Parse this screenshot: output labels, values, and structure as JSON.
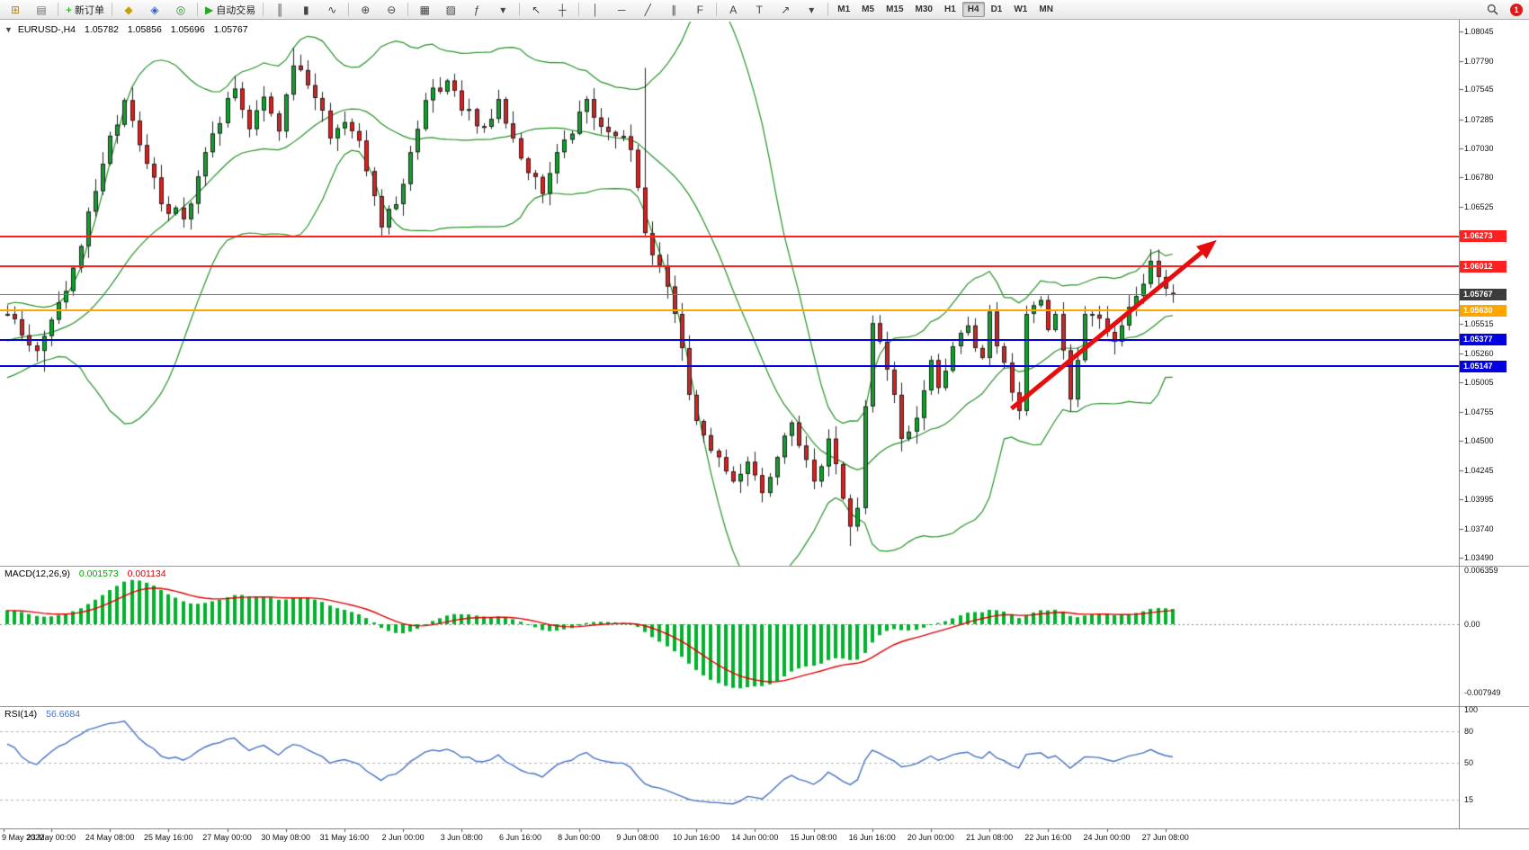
{
  "toolbar": {
    "notification_count": "1",
    "active_timeframe": "H4",
    "timeframes": [
      "M1",
      "M5",
      "M15",
      "M30",
      "H1",
      "H4",
      "D1",
      "W1",
      "MN"
    ],
    "items": [
      {
        "name": "new-chart-button",
        "glyph": "⊞",
        "color": "#b08820"
      },
      {
        "name": "profiles-button",
        "glyph": "▤",
        "color": "#707070"
      },
      {
        "type": "sep"
      },
      {
        "name": "new-order-button",
        "glyph": "+",
        "glyph_color": "#00A000",
        "label": "新订单"
      },
      {
        "type": "sep"
      },
      {
        "name": "market-watch-button",
        "glyph": "◆",
        "color": "#c8a000"
      },
      {
        "name": "navigator-button",
        "glyph": "◈",
        "color": "#3060c0"
      },
      {
        "name": "terminal-button",
        "glyph": "◎",
        "color": "#209020"
      },
      {
        "type": "sep"
      },
      {
        "name": "autotrading-button",
        "glyph": "▶",
        "glyph_color": "#22AA22",
        "label": "自动交易"
      },
      {
        "type": "sep"
      },
      {
        "name": "bar-chart-button",
        "glyph": "║"
      },
      {
        "name": "candlestick-chart-button",
        "glyph": "▮"
      },
      {
        "name": "line-chart-button",
        "glyph": "∿"
      },
      {
        "type": "sep"
      },
      {
        "name": "zoom-in-button",
        "glyph": "⊕"
      },
      {
        "name": "zoom-out-button",
        "glyph": "⊖"
      },
      {
        "type": "sep"
      },
      {
        "name": "tile-windows-button",
        "glyph": "▦"
      },
      {
        "name": "data-window-button",
        "glyph": "▨"
      },
      {
        "name": "indicators-button",
        "glyph": "ƒ"
      },
      {
        "name": "indicators-dropdown",
        "glyph": "▾"
      },
      {
        "type": "sep"
      },
      {
        "name": "cursor-button",
        "glyph": "↖"
      },
      {
        "name": "crosshair-button",
        "glyph": "┼"
      },
      {
        "type": "sep"
      },
      {
        "name": "vertical-line-button",
        "glyph": "│"
      },
      {
        "name": "horizontal-line-button",
        "glyph": "─"
      },
      {
        "name": "trendline-button",
        "glyph": "╱"
      },
      {
        "name": "equidistant-channel-button",
        "glyph": "∥"
      },
      {
        "name": "fibonacci-button",
        "glyph": "F"
      },
      {
        "type": "sep"
      },
      {
        "name": "text-button",
        "glyph": "A"
      },
      {
        "name": "text-label-button",
        "glyph": "T"
      },
      {
        "name": "arrows-button",
        "glyph": "↗"
      },
      {
        "name": "arrows-dropdown",
        "glyph": "▾"
      }
    ]
  },
  "chart": {
    "title": {
      "collapse_glyph": "▼",
      "symbol_period": "EURUSD-,H4",
      "open": "1.05782",
      "high": "1.05856",
      "low": "1.05696",
      "close": "1.05767"
    },
    "price_axis": {
      "ticks": [
        "1.08045",
        "1.07790",
        "1.07545",
        "1.07285",
        "1.07030",
        "1.06780",
        "1.06525",
        "1.05515",
        "1.05260",
        "1.05005",
        "1.04755",
        "1.04500",
        "1.04245",
        "1.03995",
        "1.03740",
        "1.03490"
      ]
    },
    "levels": [
      {
        "price": "1.06273",
        "color": "#FF2020"
      },
      {
        "price": "1.06012",
        "color": "#FF2020"
      },
      {
        "price": "1.05767",
        "color": "#777777",
        "box": "#3C3C3C",
        "current": true
      },
      {
        "price": "1.05630",
        "color": "#FFA500"
      },
      {
        "price": "1.05377",
        "color": "#0000E0"
      },
      {
        "price": "1.05147",
        "color": "#0000E0"
      }
    ],
    "time_axis": [
      "9 May 2022",
      "23 May 00:00",
      "24 May 08:00",
      "25 May 16:00",
      "27 May 00:00",
      "30 May 08:00",
      "31 May 16:00",
      "2 Jun 00:00",
      "3 Jun 08:00",
      "6 Jun 16:00",
      "8 Jun 00:00",
      "9 Jun 08:00",
      "10 Jun 16:00",
      "14 Jun 00:00",
      "15 Jun 08:00",
      "16 Jun 16:00",
      "20 Jun 00:00",
      "21 Jun 08:00",
      "22 Jun 16:00",
      "24 Jun 00:00",
      "27 Jun 08:00"
    ]
  },
  "macd": {
    "label": "MACD(12,26,9)",
    "value1": "0.001573",
    "value2": "0.001134",
    "scale": [
      "0.006359",
      "0.00",
      "-0.007949"
    ]
  },
  "rsi": {
    "label": "RSI(14)",
    "value": "56.6684",
    "scale": [
      "100",
      "80",
      "50",
      "15"
    ],
    "levels": [
      80,
      50,
      15
    ]
  },
  "chart_data": {
    "type": "candlestick",
    "symbol": "EURUSD",
    "timeframe": "H4",
    "visible_candles": 160,
    "ylim": [
      1.0342,
      1.0813
    ],
    "ohlc_last": {
      "open": 1.05782,
      "high": 1.05856,
      "low": 1.05696,
      "close": 1.05767
    },
    "price_anchors": [
      [
        0,
        1.056
      ],
      [
        4,
        1.0528
      ],
      [
        6,
        1.0555
      ],
      [
        9,
        1.06
      ],
      [
        13,
        1.069
      ],
      [
        16,
        1.0745
      ],
      [
        19,
        1.069
      ],
      [
        21,
        1.0655
      ],
      [
        24,
        1.0642
      ],
      [
        27,
        1.07
      ],
      [
        31,
        1.0755
      ],
      [
        33,
        1.072
      ],
      [
        35,
        1.0748
      ],
      [
        37,
        1.0718
      ],
      [
        39,
        1.0775
      ],
      [
        41,
        1.0758
      ],
      [
        43,
        1.0736
      ],
      [
        44,
        1.0712
      ],
      [
        46,
        1.0726
      ],
      [
        48,
        1.071
      ],
      [
        50,
        1.0662
      ],
      [
        51,
        1.0635
      ],
      [
        53,
        1.0655
      ],
      [
        55,
        1.07
      ],
      [
        57,
        1.0745
      ],
      [
        60,
        1.0762
      ],
      [
        62,
        1.0736
      ],
      [
        65,
        1.0722
      ],
      [
        67,
        1.0746
      ],
      [
        69,
        1.0712
      ],
      [
        71,
        1.0682
      ],
      [
        73,
        1.0664
      ],
      [
        75,
        1.07
      ],
      [
        77,
        1.0716
      ],
      [
        79,
        1.0746
      ],
      [
        81,
        1.0722
      ],
      [
        83,
        1.0714
      ],
      [
        85,
        1.0702
      ],
      [
        87,
        1.063
      ],
      [
        89,
        1.0602
      ],
      [
        91,
        1.056
      ],
      [
        93,
        1.049
      ],
      [
        95,
        1.0455
      ],
      [
        97,
        1.0436
      ],
      [
        99,
        1.0415
      ],
      [
        101,
        1.0432
      ],
      [
        103,
        1.0405
      ],
      [
        105,
        1.0436
      ],
      [
        107,
        1.0466
      ],
      [
        108,
        1.0446
      ],
      [
        110,
        1.0415
      ],
      [
        112,
        1.0452
      ],
      [
        113,
        1.043
      ],
      [
        115,
        1.0376
      ],
      [
        116,
        1.0392
      ],
      [
        117,
        1.048
      ],
      [
        118,
        1.0552
      ],
      [
        119,
        1.0536
      ],
      [
        121,
        1.049
      ],
      [
        122,
        1.0452
      ],
      [
        124,
        1.047
      ],
      [
        126,
        1.052
      ],
      [
        127,
        1.0496
      ],
      [
        129,
        1.0532
      ],
      [
        131,
        1.055
      ],
      [
        133,
        1.0522
      ],
      [
        134,
        1.0562
      ],
      [
        135,
        1.0532
      ],
      [
        137,
        1.0492
      ],
      [
        138,
        1.0476
      ],
      [
        139,
        1.056
      ],
      [
        141,
        1.0572
      ],
      [
        142,
        1.0546
      ],
      [
        143,
        1.056
      ],
      [
        145,
        1.0486
      ],
      [
        146,
        1.052
      ],
      [
        147,
        1.056
      ],
      [
        149,
        1.0556
      ],
      [
        151,
        1.0536
      ],
      [
        152,
        1.055
      ],
      [
        153,
        1.0566
      ],
      [
        155,
        1.0586
      ],
      [
        156,
        1.0606
      ],
      [
        157,
        1.0592
      ],
      [
        159,
        1.05767
      ]
    ],
    "wick_overrides": [
      {
        "i": 5,
        "low": 1.051
      },
      {
        "i": 39,
        "high": 1.079
      },
      {
        "i": 87,
        "high": 1.0773
      },
      {
        "i": 115,
        "low": 1.0359
      },
      {
        "i": 156,
        "high": 1.0616
      }
    ],
    "indicators": [
      {
        "name": "Bollinger Bands",
        "period": 20,
        "deviation": 2,
        "color": "#259325"
      },
      {
        "name": "MACD",
        "fast": 12,
        "slow": 26,
        "signal_period": 9,
        "histogram_color": "#00B22C",
        "signal_color": "#E00000",
        "last_values": [
          0.001573,
          0.001134
        ]
      },
      {
        "name": "RSI",
        "period": 14,
        "color": "#4472C4",
        "last_value": 56.6684
      }
    ],
    "horizontal_levels": [
      1.06273,
      1.06012,
      1.0563,
      1.05377,
      1.05147
    ],
    "annotations": [
      {
        "type": "arrow",
        "color": "#E80C0C",
        "from": {
          "index": 137,
          "price": 1.0478
        },
        "to": {
          "index": 165,
          "price": 1.0624
        }
      }
    ]
  }
}
